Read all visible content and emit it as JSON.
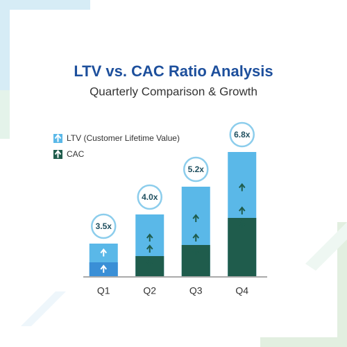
{
  "chart_data": {
    "type": "bar",
    "title": "LTV vs. CAC Ratio Analysis",
    "subtitle": "Quarterly Comparison & Growth",
    "categories": [
      "Q1",
      "Q2",
      "Q3",
      "Q4"
    ],
    "series": [
      {
        "name": "LTV (Customer Lifetime Value)",
        "color": "#5ab8e8",
        "values": [
          47,
          89,
          129,
          179
        ]
      },
      {
        "name": "CAC",
        "color": "#1f5c4c",
        "colors": [
          "#3a8fd6",
          "#1f5c4c",
          "#1f5c4c",
          "#1f5c4c"
        ],
        "values": [
          20,
          29,
          45,
          84
        ]
      }
    ],
    "ratios": [
      3.5,
      4.0,
      5.2,
      6.8
    ],
    "value_labels": [
      "3.5x",
      "4.0x",
      "5.2x",
      "6.8x"
    ],
    "ylim": [
      0,
      180
    ],
    "overlap": true
  }
}
